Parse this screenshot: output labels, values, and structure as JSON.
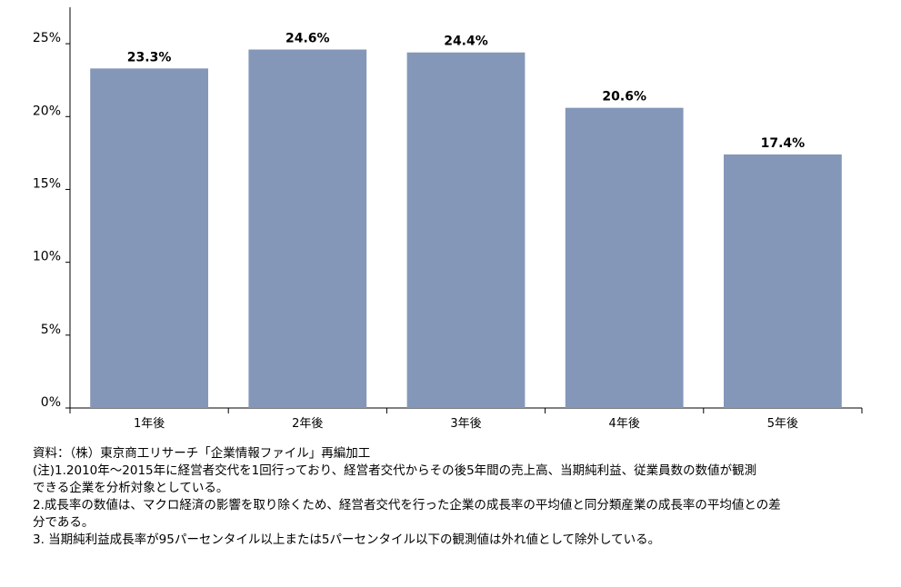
{
  "chart_data": {
    "type": "bar",
    "categories": [
      "1年後",
      "2年後",
      "3年後",
      "4年後",
      "5年後"
    ],
    "values": [
      23.3,
      24.6,
      24.4,
      20.6,
      17.4
    ],
    "data_labels": [
      "23.3%",
      "24.6%",
      "24.4%",
      "20.6%",
      "17.4%"
    ],
    "yticks": [
      0,
      5,
      10,
      15,
      20,
      25
    ],
    "ytick_labels": [
      "0%",
      "5%",
      "10%",
      "15%",
      "20%",
      "25%"
    ],
    "ylim": [
      0,
      27.5
    ],
    "grid": false,
    "legend": "none",
    "bar_color": "#8497b9"
  },
  "notes": {
    "source": "資料：（株）東京商工リサーチ「企業情報ファイル」再編加工",
    "note1_line1": "(注)1.2010年～2015年に経営者交代を1回行っており、経営者交代からその後5年間の売上高、当期純利益、従業員数の数値が観測",
    "note1_line2": "できる企業を分析対象としている。",
    "note2_line1": "2.成長率の数値は、マクロ経済の影響を取り除くため、経営者交代を行った企業の成長率の平均値と同分類産業の成長率の平均値との差",
    "note2_line2": "分である。",
    "note3": "3. 当期純利益成長率が95パーセンタイル以上または5パーセンタイル以下の観測値は外れ値として除外している。"
  }
}
